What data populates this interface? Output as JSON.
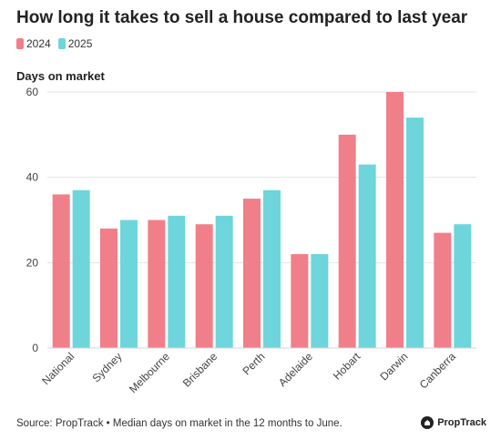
{
  "title": "How long it takes to sell a house compared to last year",
  "footer": {
    "source": "Source: PropTrack • Median days on market in the 12 months to June.",
    "brand": "PropTrack"
  },
  "colors": {
    "series_2024": "#f07f89",
    "series_2025": "#6dd5db",
    "grid": "#e3e3e3",
    "axis_text": "#444444"
  },
  "chart_data": {
    "type": "bar",
    "title": "How long it takes to sell a house compared to last year",
    "ylabel": "Days on market",
    "xlabel": "",
    "ylim": [
      0,
      60
    ],
    "yticks": [
      0,
      20,
      40,
      60
    ],
    "grid": true,
    "legend_position": "top-left",
    "categories": [
      "National",
      "Sydney",
      "Melbourne",
      "Brisbane",
      "Perth",
      "Adelaide",
      "Hobart",
      "Darwin",
      "Canberra"
    ],
    "series": [
      {
        "name": "2024",
        "color": "#f07f89",
        "values": [
          36,
          28,
          30,
          29,
          35,
          22,
          50,
          60,
          27
        ]
      },
      {
        "name": "2025",
        "color": "#6dd5db",
        "values": [
          37,
          30,
          31,
          31,
          37,
          22,
          43,
          54,
          29
        ]
      }
    ]
  }
}
